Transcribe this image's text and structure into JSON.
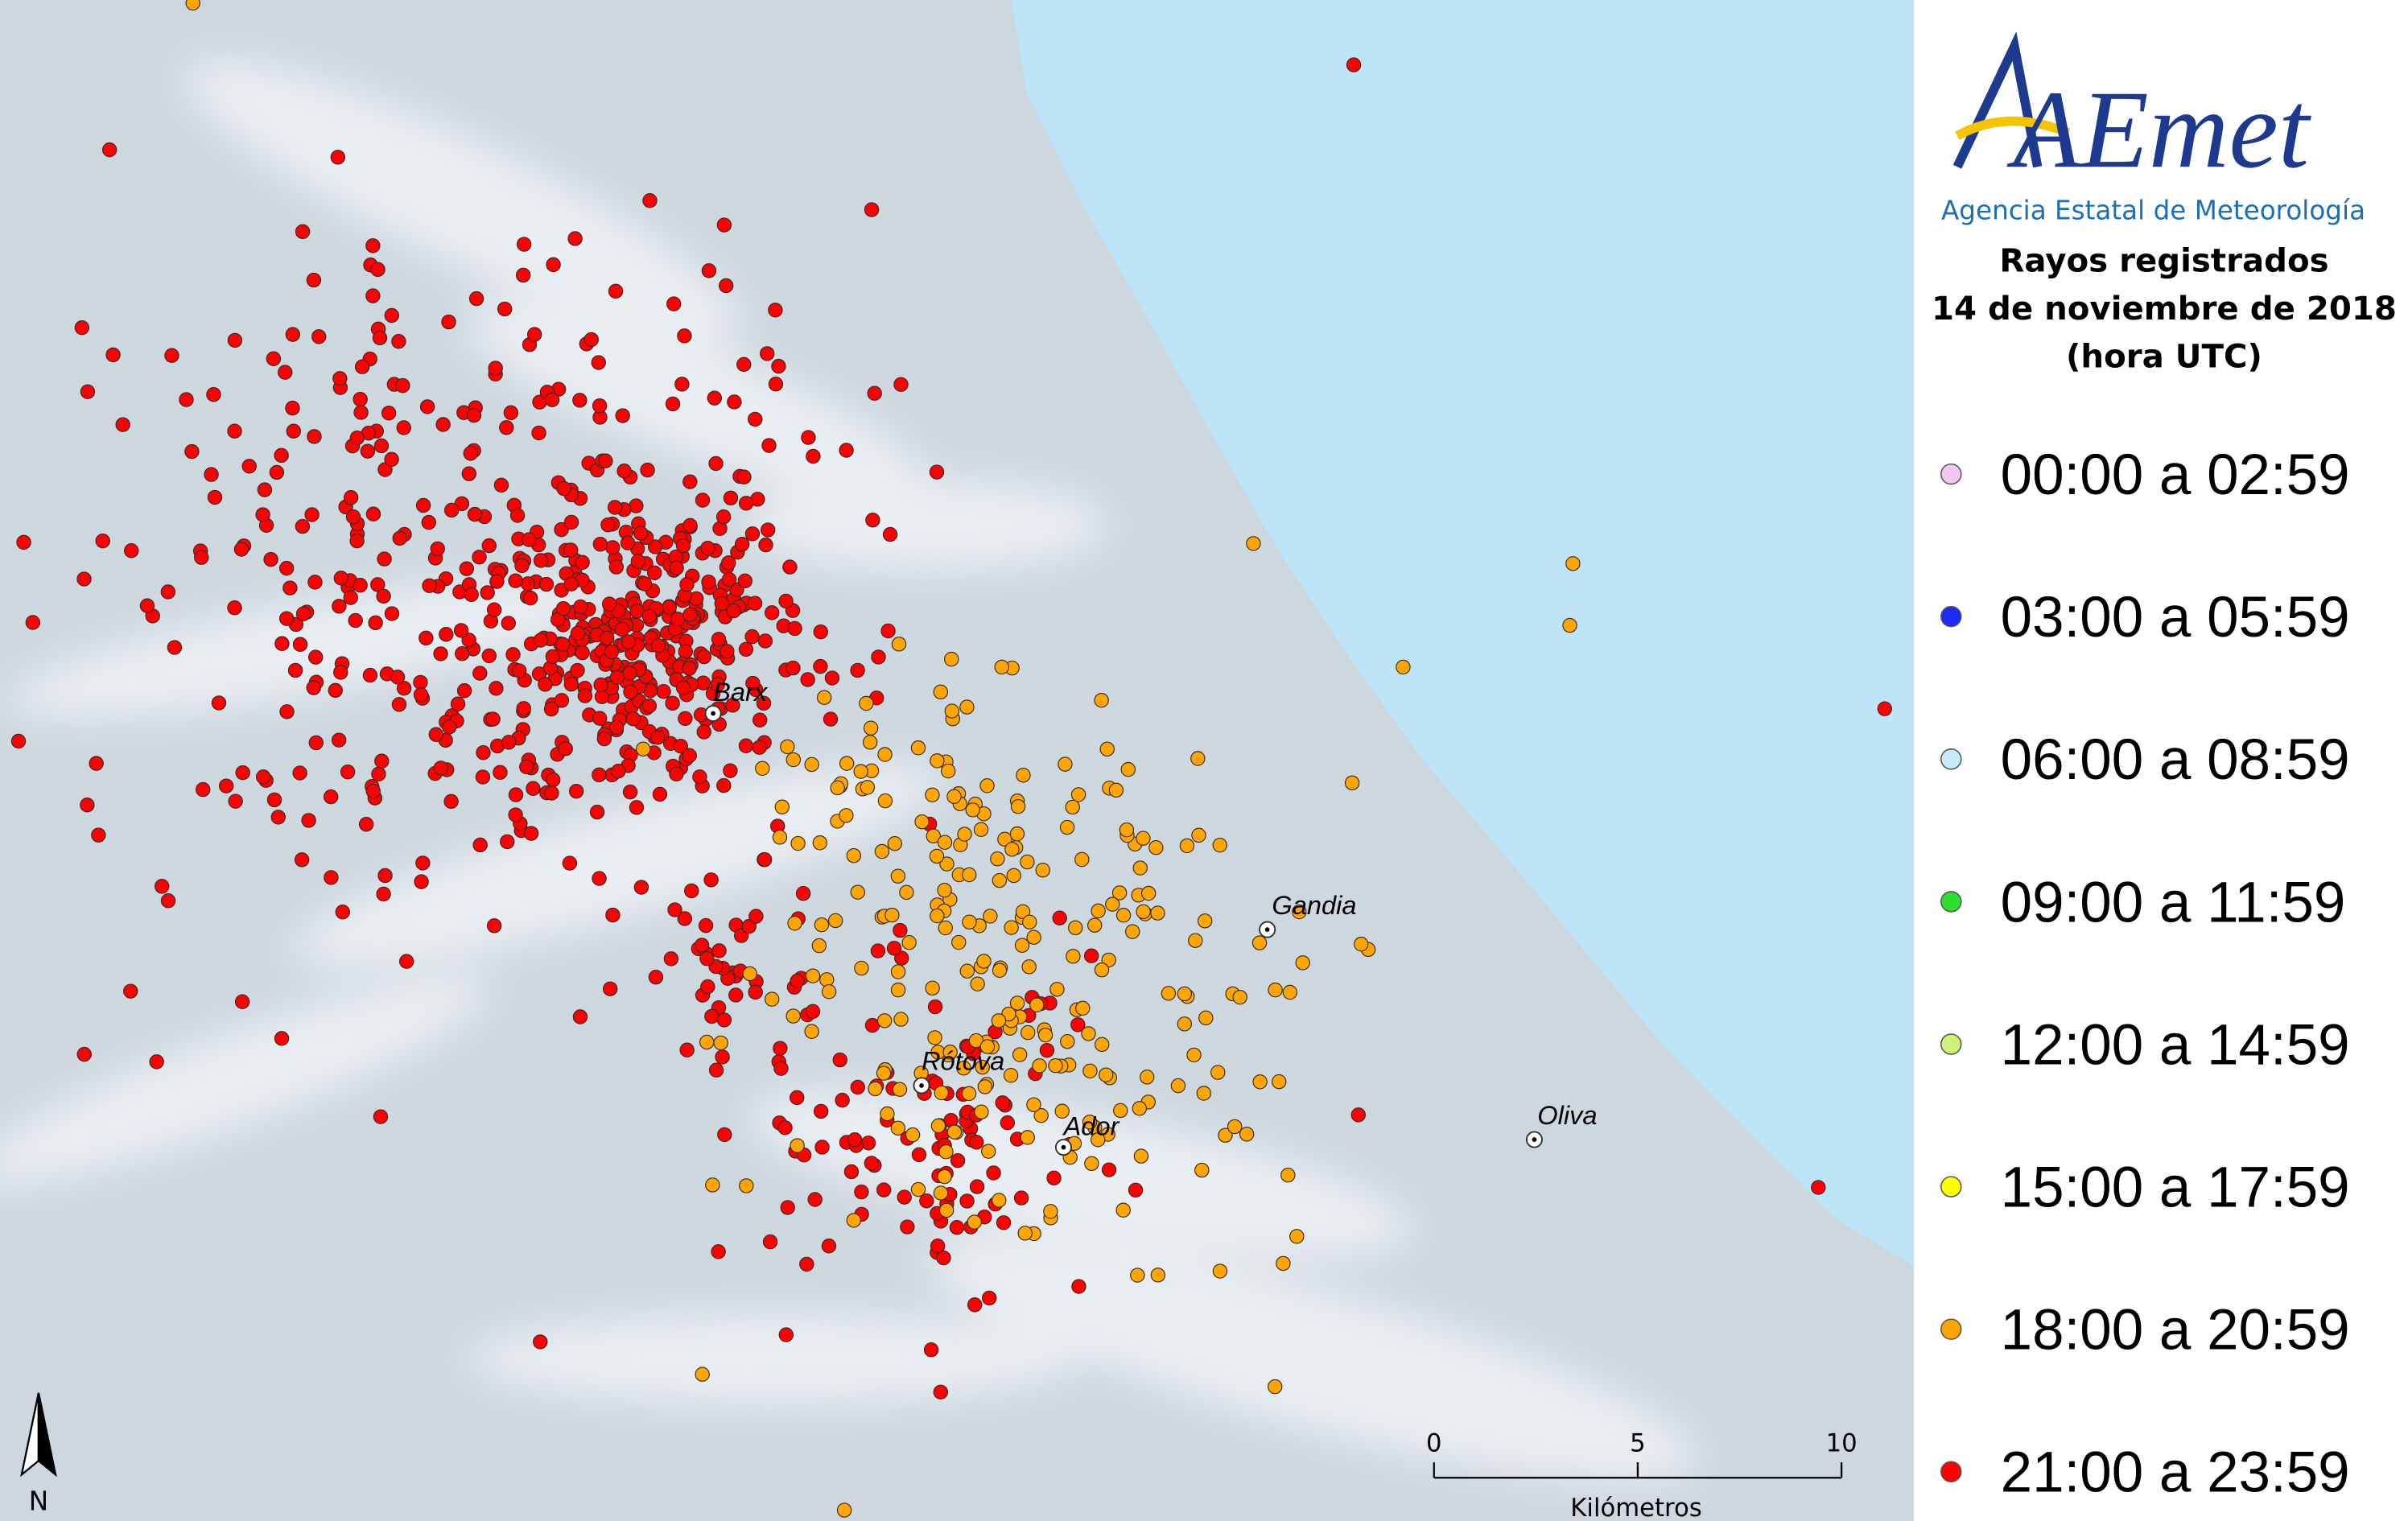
{
  "logo": {
    "name": "AEmet",
    "agency": "Agencia Estatal de Meteorología"
  },
  "title": [
    "Rayos registrados",
    "14 de noviembre de 2018",
    "(hora UTC)"
  ],
  "legend": [
    {
      "label": "00:00 a 02:59",
      "color": "#f2c6f2"
    },
    {
      "label": "03:00 a 05:59",
      "color": "#1f2bf5"
    },
    {
      "label": "06:00 a 08:59",
      "color": "#c9ebf7"
    },
    {
      "label": "09:00 a 11:59",
      "color": "#2ee02e"
    },
    {
      "label": "12:00 a 14:59",
      "color": "#cdf27a"
    },
    {
      "label": "15:00 a 17:59",
      "color": "#ffff00"
    },
    {
      "label": "18:00 a 20:59",
      "color": "#ffa500"
    },
    {
      "label": "21:00 a 23:59",
      "color": "#ff0000"
    }
  ],
  "places": [
    {
      "label": "Barx"
    },
    {
      "label": "Gandia"
    },
    {
      "label": "Rótova"
    },
    {
      "label": "Ador"
    },
    {
      "label": "Oliva"
    }
  ],
  "scale_bar": {
    "ticks": [
      0,
      5,
      10
    ],
    "unit": "Kilómetros"
  },
  "north": "N"
}
